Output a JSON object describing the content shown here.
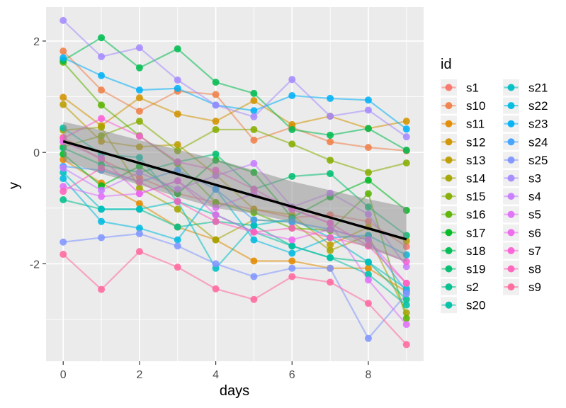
{
  "chart_data": {
    "type": "line",
    "title": "",
    "xlabel": "days",
    "ylabel": "y",
    "x": [
      0,
      1,
      2,
      3,
      4,
      5,
      6,
      7,
      8,
      9
    ],
    "xlim": [
      -0.45,
      9.45
    ],
    "ylim": [
      -3.75,
      2.61
    ],
    "x_major_ticks": [
      0,
      2,
      4,
      6,
      8
    ],
    "x_minor_ticks": [
      1,
      3,
      5,
      7,
      9
    ],
    "y_major_ticks": [
      2,
      0,
      -2
    ],
    "y_minor_ticks": [
      1,
      -1,
      -3
    ],
    "panel_bg": "#EBEBEB",
    "grid_color": "#FFFFFF",
    "tick_label_color": "#4D4D4D",
    "axis_title_color": "#000000",
    "legend": {
      "title": "id",
      "key_bg": "#F0F0F0",
      "columns": [
        [
          "s1",
          "s10",
          "s11",
          "s12",
          "s13",
          "s14",
          "s15",
          "s16",
          "s17",
          "s18",
          "s19",
          "s2",
          "s20"
        ],
        [
          "s21",
          "s22",
          "s23",
          "s24",
          "s25",
          "s3",
          "s4",
          "s5",
          "s6",
          "s7",
          "s8",
          "s9"
        ]
      ]
    },
    "trend": {
      "color": "#000000",
      "x": [
        0,
        9
      ],
      "y": [
        0.2,
        -1.56
      ]
    },
    "ribbon": {
      "color": "#8C8C8C",
      "opacity": 0.5,
      "x": [
        0,
        1,
        2,
        3,
        4,
        5,
        6,
        7,
        8,
        9
      ],
      "upper": [
        0.55,
        0.4,
        0.22,
        0.05,
        -0.12,
        -0.32,
        -0.52,
        -0.68,
        -0.84,
        -0.98
      ],
      "lower": [
        -0.15,
        -0.38,
        -0.58,
        -0.8,
        -1.0,
        -1.1,
        -1.25,
        -1.45,
        -1.72,
        -1.97
      ]
    },
    "series": [
      {
        "name": "s1",
        "color": "#F8766D",
        "values": [
          0.27,
          -0.13,
          -0.45,
          -0.74,
          -0.9,
          -1.02,
          -1.17,
          -1.12,
          -1.24,
          -1.69
        ]
      },
      {
        "name": "s10",
        "color": "#EF7F49",
        "values": [
          1.82,
          1.12,
          0.74,
          1.1,
          1.04,
          0.22,
          0.45,
          0.19,
          0.09,
          0.03
        ]
      },
      {
        "name": "s11",
        "color": "#E28A00",
        "values": [
          -0.13,
          -0.55,
          -0.92,
          -1.34,
          -1.57,
          -1.95,
          -1.95,
          -2.08,
          -2.08,
          -2.5
        ]
      },
      {
        "name": "s12",
        "color": "#D19300",
        "values": [
          0.99,
          0.48,
          0.98,
          0.69,
          0.56,
          0.93,
          0.5,
          0.65,
          0.43,
          0.56
        ]
      },
      {
        "name": "s13",
        "color": "#BC9D00",
        "values": [
          0.86,
          0.2,
          0.1,
          0.14,
          -0.4,
          -1.02,
          -1.12,
          -1.66,
          -1.34,
          -1.59
        ]
      },
      {
        "name": "s14",
        "color": "#A3A500",
        "values": [
          0.4,
          0.45,
          -0.64,
          -1.02,
          -1.57,
          -1.21,
          -1.25,
          -1.76,
          -1.49,
          -2.88
        ]
      },
      {
        "name": "s15",
        "color": "#85AD00",
        "values": [
          0.1,
          0.3,
          0.56,
          0.03,
          0.41,
          0.41,
          0.15,
          -0.14,
          -0.36,
          -0.19
        ]
      },
      {
        "name": "s16",
        "color": "#5BB300",
        "values": [
          1.62,
          0.85,
          0.3,
          -0.2,
          -0.9,
          -1.08,
          -1.36,
          -1.4,
          -0.74,
          -2.98
        ]
      },
      {
        "name": "s17",
        "color": "#00B81F",
        "values": [
          -0.03,
          -0.6,
          -0.25,
          -0.74,
          -0.14,
          -0.36,
          -1.17,
          -0.8,
          -0.5,
          -1.04
        ]
      },
      {
        "name": "s18",
        "color": "#00BC51",
        "values": [
          1.65,
          2.06,
          1.52,
          1.86,
          1.26,
          1.06,
          0.41,
          0.31,
          0.43,
          0.04
        ]
      },
      {
        "name": "s19",
        "color": "#00BE70",
        "values": [
          0.08,
          -0.22,
          -0.36,
          -0.17,
          -0.03,
          -0.66,
          -0.43,
          -0.38,
          -0.98,
          -1.49
        ]
      },
      {
        "name": "s2",
        "color": "#00C08D",
        "values": [
          -0.85,
          -1.02,
          -1.02,
          -1.34,
          -1.24,
          -1.31,
          -1.68,
          -1.89,
          -1.97,
          -2.64
        ]
      },
      {
        "name": "s20",
        "color": "#00C1A7",
        "values": [
          0.44,
          -0.03,
          -0.09,
          -0.88,
          -1.12,
          -1.43,
          -1.68,
          -1.89,
          -2.19,
          -2.74
        ]
      },
      {
        "name": "s21",
        "color": "#00BFC4",
        "values": [
          -0.36,
          -1.02,
          -1.02,
          -0.88,
          -2.08,
          -1.31,
          -1.2,
          -1.53,
          -1.97,
          -2.45
        ]
      },
      {
        "name": "s22",
        "color": "#00BAE0",
        "values": [
          -0.47,
          -1.24,
          -1.36,
          -1.57,
          -0.66,
          -1.57,
          -1.81,
          -1.53,
          -1.49,
          -1.84
        ]
      },
      {
        "name": "s23",
        "color": "#00B0F6",
        "values": [
          1.7,
          1.38,
          1.12,
          1.15,
          0.85,
          0.75,
          1.02,
          0.97,
          0.94,
          0.42
        ]
      },
      {
        "name": "s24",
        "color": "#3FA2FF",
        "values": [
          -0.25,
          -0.32,
          -0.53,
          -0.32,
          -0.66,
          -1.21,
          -1.25,
          -1.38,
          -1.57,
          -2.5
        ]
      },
      {
        "name": "s25",
        "color": "#7F96FF",
        "values": [
          -1.61,
          -1.53,
          -1.46,
          -1.68,
          -2.0,
          -2.23,
          -2.08,
          -2.08,
          -3.34,
          -2.54
        ]
      },
      {
        "name": "s3",
        "color": "#A58AFF",
        "values": [
          2.37,
          1.72,
          1.88,
          1.3,
          0.85,
          0.64,
          1.31,
          0.65,
          0.76,
          0.28
        ]
      },
      {
        "name": "s4",
        "color": "#C77CFF",
        "values": [
          -0.28,
          -0.68,
          -0.36,
          -0.66,
          -0.42,
          -0.2,
          -0.98,
          -0.73,
          -1.11,
          -2.05
        ]
      },
      {
        "name": "s5",
        "color": "#DF70F8",
        "values": [
          -0.61,
          -0.79,
          -0.74,
          -0.51,
          -0.99,
          -0.74,
          -1.02,
          -1.27,
          -2.29,
          -3.09
        ]
      },
      {
        "name": "s6",
        "color": "#ED68ED",
        "values": [
          0.19,
          -0.1,
          -0.74,
          -0.51,
          -1.12,
          -1.43,
          -1.57,
          -1.38,
          -1.57,
          -2.35
        ]
      },
      {
        "name": "s7",
        "color": "#FB61D7",
        "values": [
          0.25,
          0.61,
          0.29,
          -0.17,
          -0.32,
          -0.66,
          -1.02,
          -1.27,
          -1.68,
          -1.96
        ]
      },
      {
        "name": "s8",
        "color": "#FF62BC",
        "values": [
          -0.7,
          -0.28,
          -0.53,
          -0.88,
          -1.24,
          -1.43,
          -1.36,
          -1.53,
          -1.68,
          -2.35
        ]
      },
      {
        "name": "s9",
        "color": "#FF689E",
        "values": [
          -1.83,
          -2.46,
          -1.78,
          -2.06,
          -2.45,
          -2.64,
          -2.23,
          -2.33,
          -2.71,
          -3.45
        ]
      }
    ]
  }
}
